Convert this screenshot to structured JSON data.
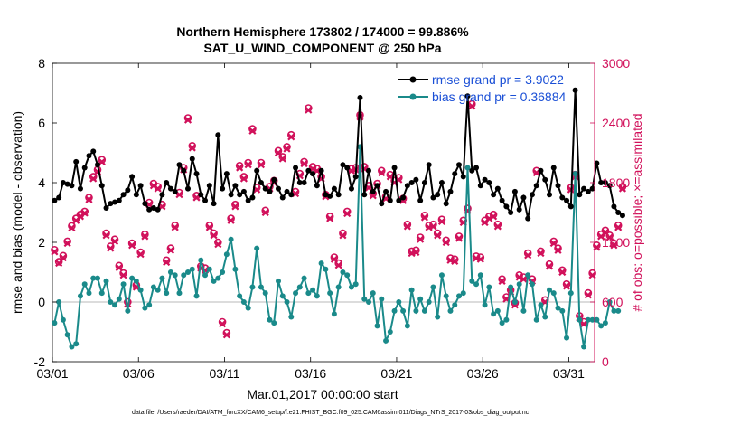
{
  "chart_data": {
    "type": "line",
    "title_line1": "Northern Hemisphere 173802 / 174000 = 99.886%",
    "title_line2": "SAT_U_WIND_COMPONENT @ 250 hPa",
    "xlabel": "Mar.01,2017 00:00:00 start",
    "ylabel_left": "rmse and bias (model - observation)",
    "ylabel_right": "# of obs: o=possible; ×=assimilated",
    "xlim": [
      0,
      31.5
    ],
    "ylim_left": [
      -2,
      8
    ],
    "ylim_right": [
      0,
      3000
    ],
    "x_ticks": [
      0,
      5,
      10,
      15,
      20,
      25,
      30
    ],
    "x_tick_labels": [
      "03/01",
      "03/06",
      "03/11",
      "03/16",
      "03/21",
      "03/26",
      "03/31"
    ],
    "y_left_ticks": [
      -2,
      0,
      2,
      4,
      6,
      8
    ],
    "y_left_tick_labels": [
      "-2",
      "0",
      "2",
      "4",
      "6",
      "8"
    ],
    "y_right_ticks": [
      0,
      600,
      1200,
      1800,
      2400,
      3000
    ],
    "y_right_tick_labels": [
      "0",
      "600",
      "1200",
      "1800",
      "2400",
      "3000"
    ],
    "zero_line": 0,
    "series": [
      {
        "name": "rmse",
        "legend": "rmse grand pr = 3.9022",
        "color": "#000000",
        "axis": "left",
        "x_start": 0.125,
        "x_step": 0.25,
        "values": [
          3.4,
          3.5,
          4.0,
          3.95,
          3.9,
          4.7,
          3.8,
          4.5,
          4.9,
          5.05,
          4.6,
          3.9,
          3.15,
          3.3,
          3.35,
          3.4,
          3.6,
          3.75,
          4.2,
          3.6,
          3.9,
          3.3,
          3.1,
          3.15,
          3.1,
          3.6,
          4.0,
          3.8,
          3.7,
          4.6,
          4.4,
          3.8,
          4.8,
          4.3,
          3.6,
          3.4,
          3.9,
          3.3,
          5.6,
          3.8,
          4.3,
          3.6,
          3.9,
          3.6,
          3.7,
          3.4,
          3.5,
          4.4,
          4.0,
          3.8,
          3.7,
          4.1,
          3.8,
          3.5,
          3.7,
          3.6,
          4.5,
          4.0,
          4.0,
          4.4,
          4.3,
          3.9,
          4.4,
          3.6,
          3.55,
          3.8,
          3.6,
          4.6,
          4.5,
          3.8,
          4.2,
          6.85,
          3.6,
          4.4,
          3.7,
          3.9,
          3.3,
          3.7,
          3.4,
          4.5,
          3.4,
          3.5,
          3.9,
          4.0,
          4.1,
          3.4,
          4.0,
          4.6,
          3.5,
          3.6,
          4.0,
          3.3,
          3.7,
          4.3,
          4.6,
          4.2,
          6.9,
          4.4,
          4.5,
          3.9,
          4.1,
          4.0,
          3.6,
          3.8,
          3.4,
          3.2,
          3.0,
          3.7,
          3.1,
          3.5,
          2.8,
          3.6,
          3.9,
          4.4,
          4.1,
          3.6,
          4.5,
          3.9,
          3.5,
          3.4,
          3.2,
          7.1,
          3.6,
          3.8,
          3.7,
          3.8,
          4.65,
          4.0,
          4.0,
          3.9,
          3.2,
          3.0,
          2.9
        ]
      },
      {
        "name": "bias",
        "legend": "bias grand pr = 0.36884",
        "color": "#1a8a8a",
        "axis": "left",
        "x_start": 0.125,
        "x_step": 0.25,
        "values": [
          -0.7,
          0.0,
          -0.6,
          -1.1,
          -1.5,
          -1.4,
          0.2,
          0.6,
          0.3,
          0.8,
          0.8,
          0.3,
          0.7,
          0.0,
          -0.1,
          0.1,
          0.6,
          -0.3,
          0.8,
          0.7,
          0.4,
          -0.2,
          -0.1,
          0.5,
          0.4,
          0.8,
          0.3,
          1.0,
          0.9,
          0.3,
          0.9,
          1.0,
          1.1,
          0.2,
          1.4,
          0.9,
          1.1,
          0.7,
          0.8,
          1.0,
          1.6,
          2.1,
          1.1,
          0.2,
          0.0,
          -0.2,
          0.5,
          1.8,
          0.5,
          0.3,
          -0.6,
          -0.7,
          0.7,
          0.2,
          0.0,
          -0.5,
          0.3,
          0.5,
          0.8,
          0.3,
          0.4,
          0.2,
          1.3,
          1.1,
          0.3,
          -0.4,
          0.5,
          1.0,
          0.9,
          0.5,
          0.6,
          5.2,
          0.1,
          0.0,
          0.3,
          -0.8,
          0.1,
          -1.3,
          -1.0,
          -0.3,
          0.0,
          -0.3,
          -0.8,
          0.4,
          -0.3,
          0.1,
          -0.3,
          0.0,
          0.5,
          -0.5,
          0.9,
          0.2,
          -0.3,
          -0.1,
          0.2,
          0.3,
          4.5,
          0.7,
          0.6,
          0.9,
          -0.1,
          0.5,
          -0.4,
          -0.3,
          -0.7,
          -0.6,
          0.5,
          0.0,
          0.6,
          -0.3,
          0.9,
          0.6,
          -0.6,
          -0.1,
          -0.5,
          0.4,
          0.3,
          -0.2,
          -0.3,
          -1.2,
          0.3,
          4.3,
          -0.6,
          -1.5,
          -0.6,
          -0.6,
          -0.6,
          -0.8,
          -0.7,
          0.0,
          -0.3,
          -0.3
        ]
      },
      {
        "name": "possible",
        "marker": "o",
        "color": "#d1105a",
        "axis": "right",
        "x_start": 0.125,
        "x_step": 0.25,
        "values": [
          1125,
          1005,
          1065,
          1210,
          1365,
          1440,
          1480,
          1510,
          1650,
          1860,
          1930,
          2030,
          1290,
          1160,
          1230,
          965,
          890,
          600,
          1190,
          770,
          1100,
          1280,
          1600,
          1790,
          1760,
          1580,
          1020,
          1140,
          1370,
          1700,
          1950,
          2450,
          2170,
          1670,
          960,
          940,
          1370,
          1290,
          1200,
          400,
          290,
          1440,
          1580,
          1970,
          1860,
          2000,
          2340,
          1750,
          2000,
          1520,
          1760,
          1820,
          2120,
          2060,
          2160,
          2280,
          1710,
          1890,
          2010,
          2550,
          1960,
          1940,
          1860,
          1680,
          1460,
          1050,
          990,
          1290,
          1510,
          1940,
          1950,
          2480,
          1960,
          1770,
          1690,
          1790,
          1920,
          1660,
          1880,
          1820,
          1850,
          1640,
          1380,
          1110,
          1120,
          1250,
          1470,
          1370,
          1380,
          1290,
          1430,
          1220,
          1040,
          1030,
          1260,
          1420,
          1540,
          2590,
          1060,
          1050,
          1420,
          1460,
          1480,
          1380,
          830,
          650,
          720,
          590,
          870,
          850,
          1090,
          830,
          1920,
          1110,
          620,
          980,
          1210,
          1140,
          920,
          780,
          1750,
          1880,
          460,
          400,
          690,
          890,
          1170,
          1280,
          1320,
          1270,
          1190,
          1370,
          1760
        ]
      },
      {
        "name": "assimilated",
        "marker": "x",
        "color": "#d1105a",
        "axis": "right",
        "x_start": 0.125,
        "x_step": 0.25,
        "values": [
          1105,
          990,
          1045,
          1190,
          1345,
          1420,
          1460,
          1495,
          1630,
          1840,
          1910,
          2010,
          1270,
          1140,
          1210,
          945,
          870,
          580,
          1170,
          750,
          1080,
          1260,
          1580,
          1770,
          1740,
          1560,
          1000,
          1120,
          1350,
          1680,
          1930,
          2430,
          2150,
          1650,
          940,
          920,
          1350,
          1270,
          1180,
          380,
          270,
          1420,
          1560,
          1950,
          1840,
          1980,
          2320,
          1730,
          1980,
          1500,
          1740,
          1800,
          2100,
          2040,
          2140,
          2260,
          1690,
          1870,
          1990,
          2530,
          1940,
          1920,
          1840,
          1660,
          1440,
          1030,
          970,
          1270,
          1490,
          1920,
          1930,
          2460,
          1940,
          1750,
          1670,
          1770,
          1900,
          1640,
          1860,
          1800,
          1830,
          1620,
          1360,
          1090,
          1100,
          1230,
          1450,
          1350,
          1360,
          1270,
          1410,
          1200,
          1020,
          1010,
          1240,
          1400,
          1520,
          2570,
          1040,
          1030,
          1400,
          1440,
          1460,
          1360,
          810,
          630,
          700,
          570,
          850,
          830,
          1070,
          810,
          1900,
          1090,
          600,
          960,
          1190,
          1120,
          900,
          760,
          1730,
          1860,
          440,
          380,
          670,
          870,
          1150,
          1260,
          1300,
          1250,
          1170,
          1350,
          1740
        ]
      }
    ],
    "legend_position": "top-right",
    "footnote": "data file: /Users/raeder/DAI/ATM_forcXX/CAM6_setup/f.e21.FHIST_BGC.f09_025.CAM6assim.011/Diags_NTrS_2017-03/obs_diag_output.nc"
  }
}
